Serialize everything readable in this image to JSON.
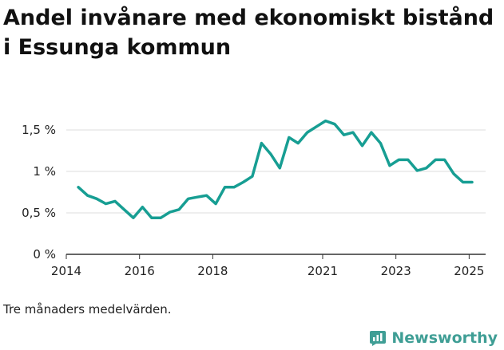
{
  "chart_data": {
    "type": "line",
    "title": "Andel invånare med ekonomiskt bistånd i Essunga kommun",
    "caption": "Tre månaders medelvärden.",
    "xlabel": "",
    "ylabel": "",
    "xlim": [
      2014.0,
      2025.45
    ],
    "ylim": [
      0,
      1.5
    ],
    "grid": true,
    "x_ticks": [
      {
        "value": 2014,
        "label": "2014"
      },
      {
        "value": 2016,
        "label": "2016"
      },
      {
        "value": 2018,
        "label": "2018"
      },
      {
        "value": 2021,
        "label": "2021"
      },
      {
        "value": 2023,
        "label": "2023"
      },
      {
        "value": 2025,
        "label": "2025"
      }
    ],
    "y_ticks": [
      {
        "value": 0,
        "label": "0 %"
      },
      {
        "value": 0.5,
        "label": "0,5 %"
      },
      {
        "value": 1,
        "label": "1 %"
      },
      {
        "value": 1.5,
        "label": "1,5 %"
      }
    ],
    "series": [
      {
        "color": "#179e93",
        "points": [
          [
            2014.33,
            0.81
          ],
          [
            2014.58,
            0.71
          ],
          [
            2014.83,
            0.67
          ],
          [
            2015.08,
            0.61
          ],
          [
            2015.33,
            0.64
          ],
          [
            2015.58,
            0.54
          ],
          [
            2015.83,
            0.44
          ],
          [
            2016.08,
            0.57
          ],
          [
            2016.33,
            0.44
          ],
          [
            2016.58,
            0.44
          ],
          [
            2016.83,
            0.51
          ],
          [
            2017.08,
            0.54
          ],
          [
            2017.33,
            0.67
          ],
          [
            2017.58,
            0.69
          ],
          [
            2017.83,
            0.71
          ],
          [
            2018.08,
            0.61
          ],
          [
            2018.33,
            0.81
          ],
          [
            2018.58,
            0.81
          ],
          [
            2018.83,
            0.87
          ],
          [
            2019.08,
            0.94
          ],
          [
            2019.33,
            1.34
          ],
          [
            2019.58,
            1.21
          ],
          [
            2019.83,
            1.04
          ],
          [
            2020.08,
            1.41
          ],
          [
            2020.33,
            1.34
          ],
          [
            2020.58,
            1.47
          ],
          [
            2020.83,
            1.54
          ],
          [
            2021.08,
            1.61
          ],
          [
            2021.33,
            1.57
          ],
          [
            2021.58,
            1.44
          ],
          [
            2021.83,
            1.47
          ],
          [
            2022.08,
            1.31
          ],
          [
            2022.33,
            1.47
          ],
          [
            2022.58,
            1.34
          ],
          [
            2022.83,
            1.07
          ],
          [
            2023.08,
            1.14
          ],
          [
            2023.33,
            1.14
          ],
          [
            2023.58,
            1.01
          ],
          [
            2023.83,
            1.04
          ],
          [
            2024.08,
            1.14
          ],
          [
            2024.33,
            1.14
          ],
          [
            2024.58,
            0.97
          ],
          [
            2024.83,
            0.87
          ],
          [
            2025.08,
            0.87
          ]
        ]
      }
    ]
  },
  "branding": {
    "name": "Newsworthy",
    "color": "#3f9e95",
    "icon": "newsworthy-logo-icon"
  }
}
